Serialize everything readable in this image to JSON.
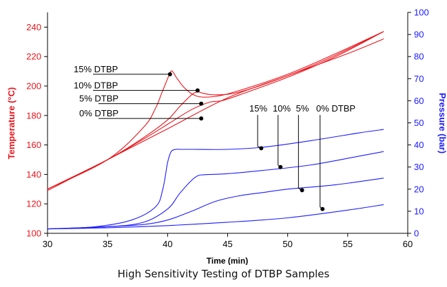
{
  "caption": "High Sensitivity Testing of DTBP Samples",
  "colors": {
    "temperature": "#e8141b",
    "pressure": "#1a1aff",
    "axis": "#000000"
  },
  "chart_data": {
    "type": "line",
    "xlabel": "Time (min)",
    "ylabel": "Temperature (°C)",
    "y2label": "Pressure (bar)",
    "xlim": [
      30,
      60
    ],
    "ylim": [
      100,
      250
    ],
    "y2lim": [
      0,
      100
    ],
    "x_ticks": [
      30,
      35,
      40,
      45,
      50,
      55,
      60
    ],
    "y_ticks": [
      100,
      120,
      140,
      160,
      180,
      200,
      220,
      240
    ],
    "y2_ticks": [
      0,
      10,
      20,
      30,
      40,
      50,
      60,
      70,
      80,
      90,
      100
    ],
    "grid": false,
    "series": [
      {
        "name": "15% DTBP",
        "axis": "left",
        "x": [
          30,
          35,
          38,
          39,
          39.5,
          40,
          40.2,
          40.4,
          40.8,
          41.5,
          42.5,
          44,
          46,
          50,
          54,
          58
        ],
        "y": [
          130,
          150,
          172,
          185,
          195,
          205,
          209,
          210,
          205,
          198,
          193,
          193,
          197,
          208,
          222,
          237
        ]
      },
      {
        "name": "10% DTBP",
        "axis": "left",
        "x": [
          30,
          35,
          38,
          40,
          41,
          42,
          42.5,
          43,
          44,
          46,
          50,
          54,
          58
        ],
        "y": [
          130,
          150,
          165,
          177,
          186,
          194,
          196,
          195,
          194,
          196,
          207,
          221,
          237
        ]
      },
      {
        "name": "5% DTBP",
        "axis": "left",
        "x": [
          30,
          35,
          38,
          40,
          42,
          43.5,
          44.5,
          46,
          50,
          54,
          58
        ],
        "y": [
          130,
          150,
          164,
          174,
          184,
          189,
          190,
          194,
          206,
          220,
          237
        ]
      },
      {
        "name": "0% DTBP",
        "axis": "left",
        "x": [
          30,
          35,
          40,
          45,
          50,
          55,
          58
        ],
        "y": [
          129,
          150,
          171,
          192,
          207,
          222,
          232
        ]
      },
      {
        "name": "15% DTBP",
        "axis": "right",
        "x": [
          30,
          34,
          37,
          39,
          39.6,
          40,
          40.3,
          40.7,
          41,
          42,
          45,
          48,
          52,
          56,
          58
        ],
        "y": [
          2,
          3,
          6,
          12,
          20,
          32,
          37,
          38,
          38,
          38,
          38,
          39,
          42,
          45.5,
          47
        ]
      },
      {
        "name": "10% DTBP",
        "axis": "right",
        "x": [
          30,
          35,
          38,
          40,
          41,
          42,
          42.5,
          43,
          45,
          48,
          52,
          56,
          58
        ],
        "y": [
          2,
          3,
          5,
          11,
          18,
          24,
          26,
          26.5,
          27,
          28.5,
          31,
          35,
          37
        ]
      },
      {
        "name": "5% DTBP",
        "axis": "right",
        "x": [
          30,
          35,
          38,
          40,
          42,
          44,
          46,
          48,
          50,
          54,
          58
        ],
        "y": [
          2,
          3,
          4,
          6,
          10,
          14.5,
          17,
          18.5,
          20,
          22,
          25
        ]
      },
      {
        "name": "0% DTBP",
        "axis": "right",
        "x": [
          30,
          35,
          40,
          45,
          50,
          55,
          58
        ],
        "y": [
          2,
          2.5,
          3.5,
          5,
          7,
          10.5,
          13
        ]
      }
    ],
    "annotations_left": [
      {
        "text": "15% DTBP",
        "point": [
          40.2,
          208
        ]
      },
      {
        "text": "10% DTBP",
        "point": [
          42.5,
          197
        ]
      },
      {
        "text": "5% DTBP",
        "point": [
          42.8,
          188
        ]
      },
      {
        "text": "0% DTBP",
        "point": [
          42.8,
          178
        ]
      }
    ],
    "annotation_right_text": [
      "15%",
      "10%",
      "5%",
      "0% DTBP"
    ],
    "annotations_right": [
      {
        "label_x": 47.5,
        "point": [
          47.8,
          38.5
        ]
      },
      {
        "label_x": 49.2,
        "point": [
          49.4,
          30
        ]
      },
      {
        "label_x": 50.9,
        "point": [
          51.2,
          19.5
        ]
      },
      {
        "label_x": 52.7,
        "point": [
          52.9,
          11
        ]
      }
    ]
  }
}
